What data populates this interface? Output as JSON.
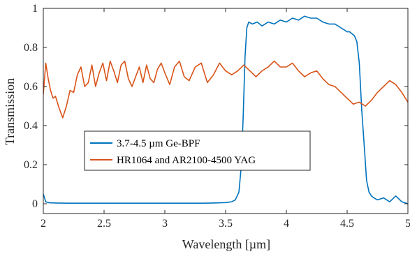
{
  "chart_data": {
    "type": "line",
    "xlabel": "Wavelength [µm]",
    "ylabel": "Transmission",
    "xlim": [
      2,
      5
    ],
    "ylim": [
      -0.05,
      1
    ],
    "xticks": [
      "2",
      "2.5",
      "3",
      "3.5",
      "4",
      "4.5",
      "5"
    ],
    "yticks": [
      "0",
      "0.2",
      "0.4",
      "0.6",
      "0.8",
      "1"
    ],
    "grid": false,
    "legend_position": "lower-left",
    "series": [
      {
        "name": "3.7-4.5 µm Ge-BPF",
        "color": "#0072BD",
        "x": [
          2.0,
          2.02,
          2.05,
          2.1,
          2.2,
          2.3,
          2.4,
          2.5,
          2.6,
          2.7,
          2.8,
          2.9,
          3.0,
          3.1,
          3.2,
          3.3,
          3.4,
          3.5,
          3.55,
          3.58,
          3.61,
          3.63,
          3.645,
          3.66,
          3.675,
          3.69,
          3.72,
          3.76,
          3.8,
          3.85,
          3.9,
          3.95,
          4.0,
          4.05,
          4.1,
          4.15,
          4.2,
          4.25,
          4.3,
          4.35,
          4.4,
          4.45,
          4.5,
          4.52,
          4.54,
          4.56,
          4.58,
          4.6,
          4.62,
          4.64,
          4.66,
          4.68,
          4.7,
          4.72,
          4.75,
          4.8,
          4.85,
          4.9,
          4.95,
          5.0
        ],
        "y": [
          0.05,
          0.01,
          0.005,
          0.004,
          0.003,
          0.003,
          0.003,
          0.003,
          0.003,
          0.003,
          0.003,
          0.003,
          0.003,
          0.003,
          0.003,
          0.003,
          0.004,
          0.006,
          0.01,
          0.02,
          0.06,
          0.2,
          0.45,
          0.75,
          0.9,
          0.93,
          0.92,
          0.93,
          0.91,
          0.93,
          0.92,
          0.94,
          0.93,
          0.95,
          0.94,
          0.96,
          0.95,
          0.95,
          0.93,
          0.92,
          0.92,
          0.9,
          0.88,
          0.88,
          0.87,
          0.86,
          0.83,
          0.72,
          0.48,
          0.3,
          0.12,
          0.06,
          0.04,
          0.03,
          0.02,
          0.03,
          0.01,
          0.04,
          0.01,
          0.0
        ]
      },
      {
        "name": "HR1064 and AR2100-4500 YAG",
        "color": "#D95319",
        "x": [
          2.0,
          2.02,
          2.04,
          2.06,
          2.08,
          2.1,
          2.13,
          2.16,
          2.19,
          2.22,
          2.25,
          2.28,
          2.31,
          2.34,
          2.37,
          2.4,
          2.43,
          2.46,
          2.49,
          2.52,
          2.55,
          2.58,
          2.61,
          2.64,
          2.67,
          2.7,
          2.73,
          2.76,
          2.79,
          2.82,
          2.85,
          2.88,
          2.91,
          2.94,
          2.97,
          3.0,
          3.04,
          3.08,
          3.12,
          3.16,
          3.2,
          3.25,
          3.3,
          3.35,
          3.4,
          3.45,
          3.5,
          3.55,
          3.6,
          3.65,
          3.7,
          3.75,
          3.8,
          3.85,
          3.9,
          3.95,
          4.0,
          4.05,
          4.1,
          4.15,
          4.2,
          4.25,
          4.3,
          4.35,
          4.4,
          4.45,
          4.5,
          4.55,
          4.6,
          4.65,
          4.7,
          4.75,
          4.8,
          4.85,
          4.9,
          4.95,
          5.0
        ],
        "y": [
          0.56,
          0.72,
          0.64,
          0.58,
          0.54,
          0.55,
          0.49,
          0.44,
          0.5,
          0.58,
          0.57,
          0.66,
          0.7,
          0.6,
          0.62,
          0.71,
          0.6,
          0.67,
          0.72,
          0.63,
          0.73,
          0.68,
          0.62,
          0.71,
          0.73,
          0.64,
          0.6,
          0.65,
          0.7,
          0.62,
          0.71,
          0.64,
          0.62,
          0.69,
          0.72,
          0.67,
          0.61,
          0.7,
          0.73,
          0.65,
          0.63,
          0.7,
          0.72,
          0.62,
          0.66,
          0.72,
          0.68,
          0.66,
          0.68,
          0.71,
          0.68,
          0.65,
          0.68,
          0.7,
          0.73,
          0.7,
          0.7,
          0.72,
          0.68,
          0.65,
          0.67,
          0.68,
          0.64,
          0.61,
          0.6,
          0.57,
          0.54,
          0.51,
          0.52,
          0.5,
          0.53,
          0.57,
          0.6,
          0.63,
          0.61,
          0.57,
          0.52
        ]
      }
    ]
  }
}
